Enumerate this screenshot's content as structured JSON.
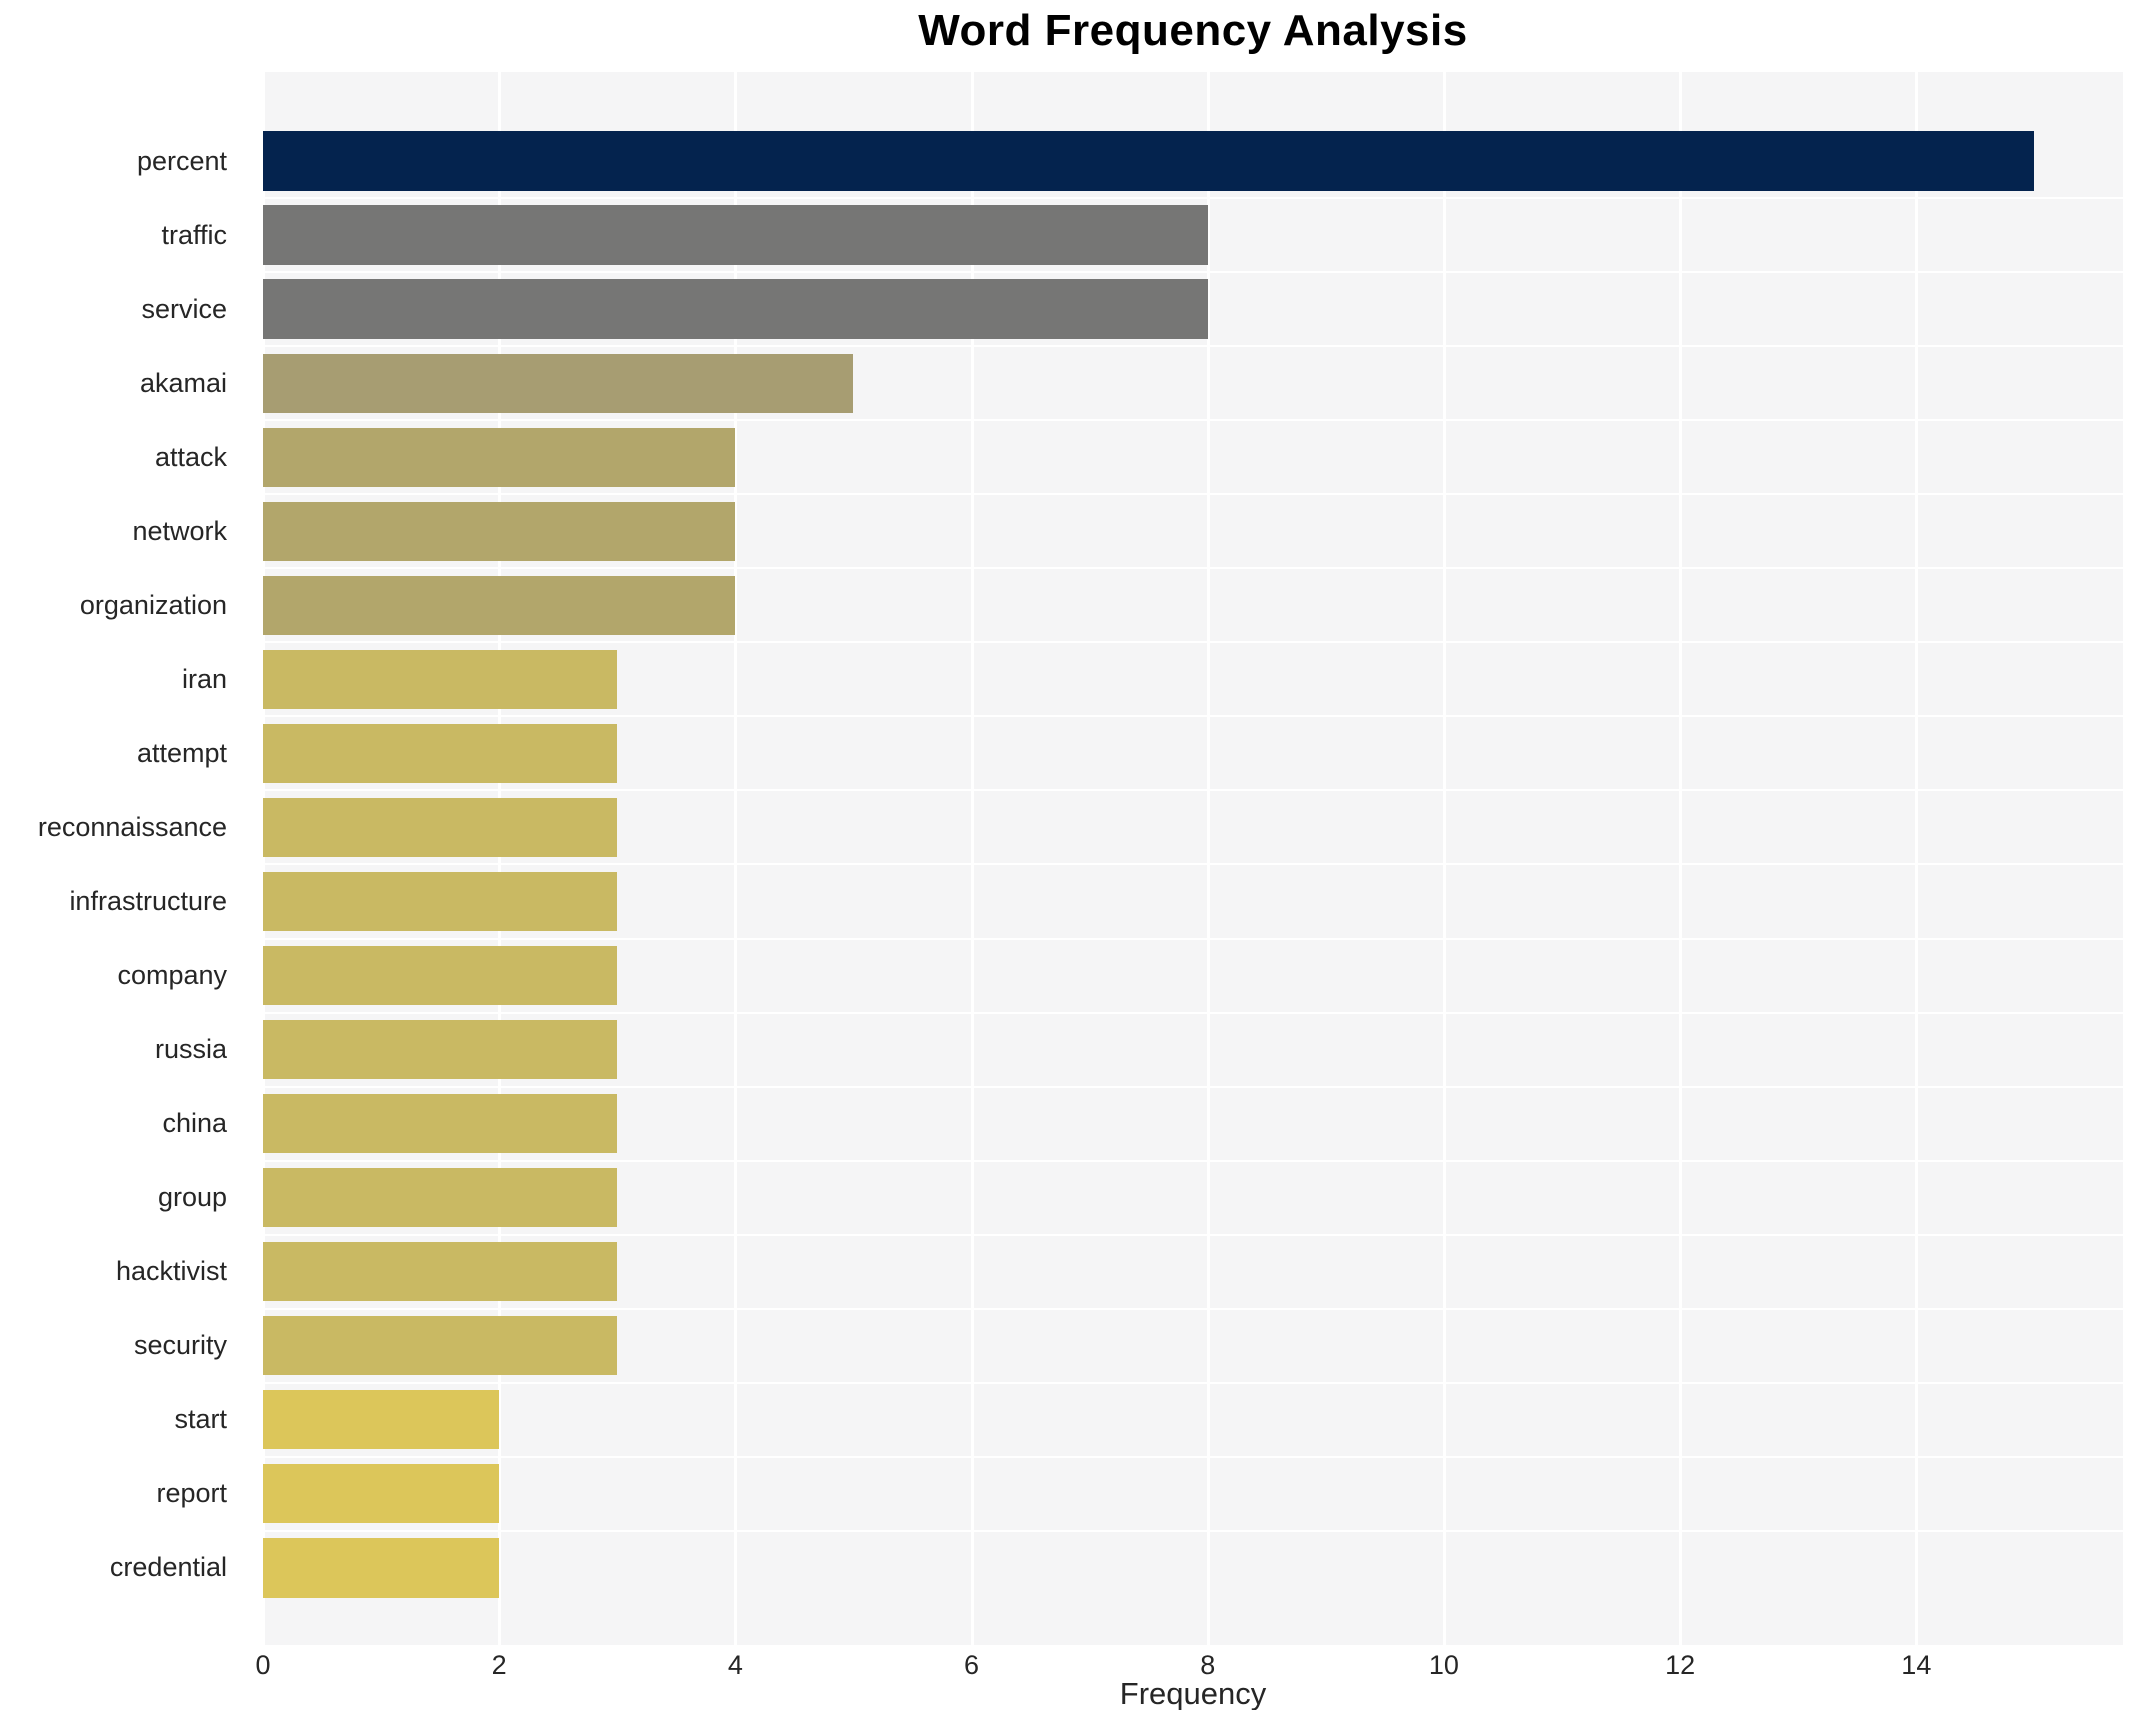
{
  "chart": {
    "title": "Word Frequency Analysis",
    "xlabel": "Frequency"
  },
  "chart_data": {
    "type": "bar",
    "orientation": "horizontal",
    "title": "Word Frequency Analysis",
    "xlabel": "Frequency",
    "ylabel": "",
    "categories": [
      "percent",
      "traffic",
      "service",
      "akamai",
      "attack",
      "network",
      "organization",
      "iran",
      "attempt",
      "reconnaissance",
      "infrastructure",
      "company",
      "russia",
      "china",
      "group",
      "hacktivist",
      "security",
      "start",
      "report",
      "credential"
    ],
    "values": [
      15,
      8,
      8,
      5,
      4,
      4,
      4,
      3,
      3,
      3,
      3,
      3,
      3,
      3,
      3,
      3,
      3,
      2,
      2,
      2
    ],
    "bar_colors": [
      "#04234e",
      "#767675",
      "#767675",
      "#a79d72",
      "#b2a66b",
      "#b2a66b",
      "#b2a66b",
      "#c9b963",
      "#c9b963",
      "#c9b963",
      "#c9b963",
      "#c9b963",
      "#c9b963",
      "#c9b963",
      "#c9b963",
      "#c9b963",
      "#c9b963",
      "#dcc65a",
      "#dcc65a",
      "#dcc65a"
    ],
    "xticks": [
      0,
      2,
      4,
      6,
      8,
      10,
      12,
      14
    ],
    "xlim": [
      0,
      15.75
    ],
    "grid": "vertical white major gridlines every 2 units, white row separators, on light gray panel",
    "legend_position": "none",
    "style_colors": {
      "panel_bg": "#f5f5f6",
      "gridline": "#ffffff",
      "text": "#262626",
      "title_text": "#000000"
    }
  }
}
